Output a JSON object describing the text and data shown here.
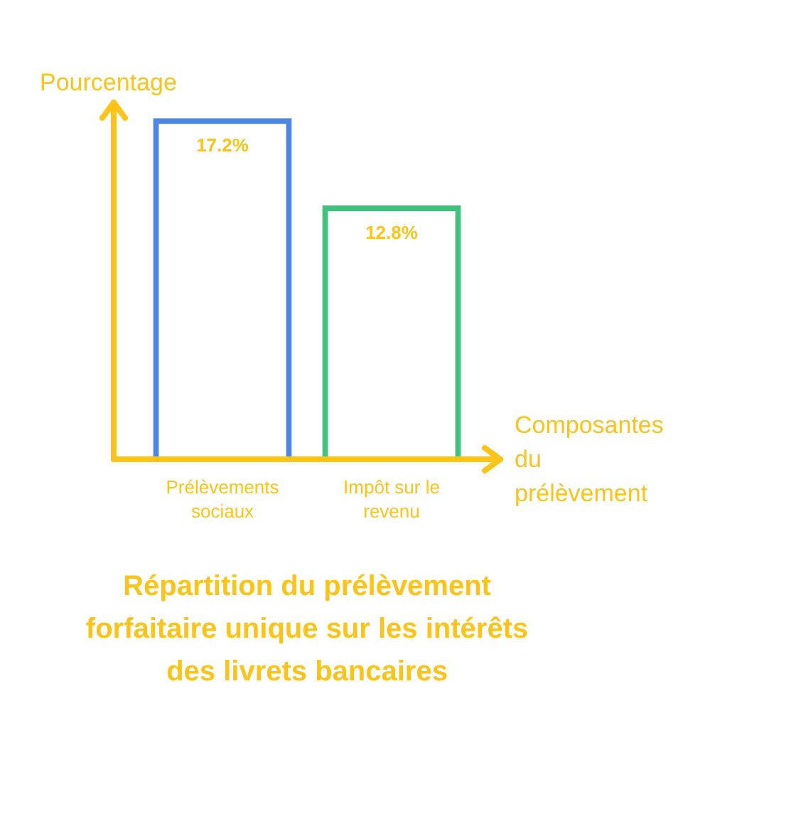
{
  "chart_data": {
    "type": "bar",
    "title": "Répartition du prélèvement forfaitaire unique sur les intérêts des livrets bancaires",
    "xlabel": "Composantes du prélèvement",
    "ylabel": "Pourcentage",
    "categories": [
      "Prélèvements sociaux",
      "Impôt sur le revenu"
    ],
    "values": [
      17.2,
      12.8
    ],
    "colors": [
      "#4f86e4",
      "#3ec47e"
    ],
    "value_labels": [
      "17.2%",
      "12.8%"
    ],
    "ylim": [
      0,
      18
    ],
    "tick_labels": "x"
  }
}
